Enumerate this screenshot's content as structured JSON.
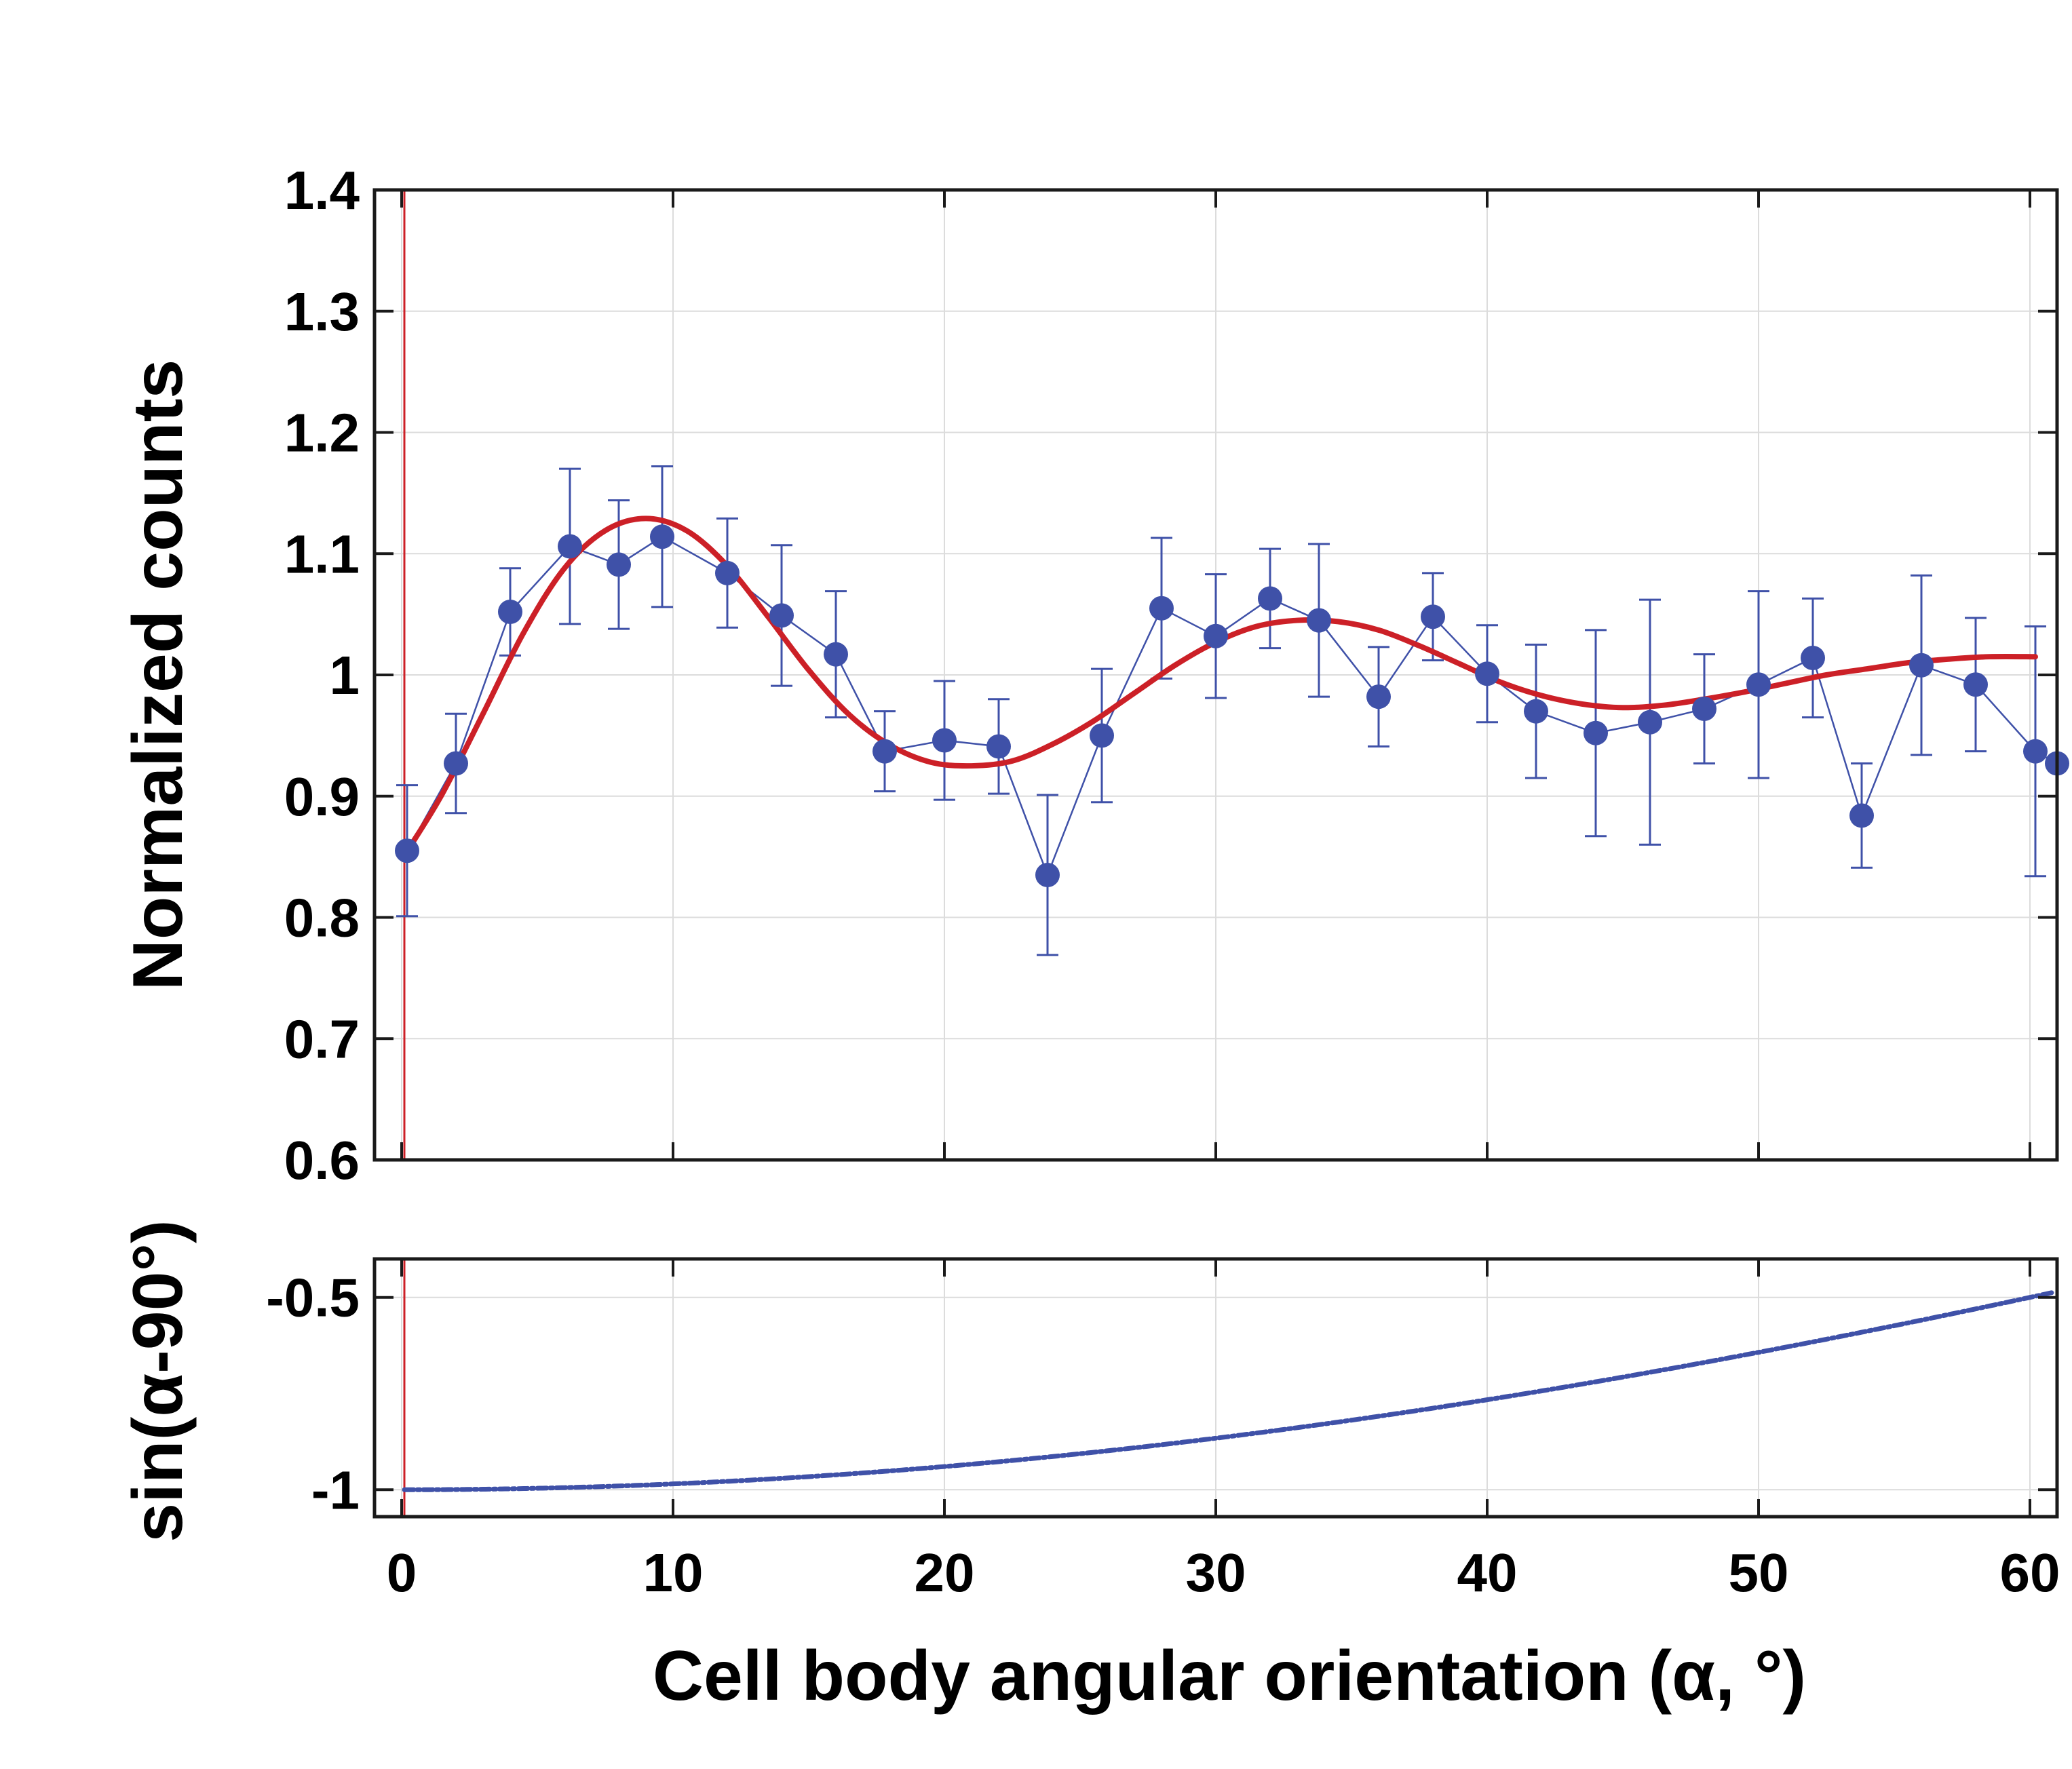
{
  "chart_data": [
    {
      "type": "scatter",
      "panel": "top",
      "ylabel": "Normalized counts",
      "xlim": [
        -1,
        61
      ],
      "ylim": [
        0.6,
        1.4
      ],
      "yticks": [
        "0.6",
        "0.7",
        "0.8",
        "0.9",
        "1",
        "1.1",
        "1.2",
        "1.3",
        "1.4"
      ],
      "xticks": [
        0,
        10,
        20,
        30,
        40,
        50,
        60
      ],
      "grid": true,
      "marker_reference_x": 0.1,
      "colors": {
        "data": "#3f51a8",
        "fit": "#cc2027",
        "reference": "#cc2027"
      },
      "series": [
        {
          "kind": "data-with-error-bars",
          "x": [
            0.2,
            2.0,
            4.0,
            6.2,
            8.0,
            9.6,
            12.0,
            14.0,
            16.0,
            17.8,
            20.0,
            22.0,
            23.8,
            25.8,
            28.0,
            30.0,
            32.0,
            33.8,
            36.0,
            38.0,
            40.0,
            41.8,
            44.0,
            46.0,
            48.0,
            50.0,
            52.0,
            53.8,
            56.0,
            58.0,
            60.2,
            61.0
          ],
          "y": [
            0.855,
            0.927,
            1.052,
            1.106,
            1.091,
            1.114,
            1.084,
            1.049,
            1.017,
            0.937,
            0.946,
            0.941,
            0.835,
            0.95,
            1.055,
            1.032,
            1.063,
            1.045,
            0.982,
            1.048,
            1.001,
            0.97,
            0.952,
            0.961,
            0.972,
            0.992,
            1.014,
            0.884,
            1.008,
            0.992,
            0.937,
            0.927
          ],
          "yerr": [
            0.054,
            0.041,
            0.036,
            0.064,
            0.053,
            0.058,
            0.045,
            0.058,
            0.052,
            0.033,
            0.049,
            0.039,
            0.066,
            0.055,
            0.058,
            0.051,
            0.041,
            0.063,
            0.041,
            0.036,
            0.04,
            0.055,
            0.085,
            0.101,
            0.045,
            0.077,
            0.049,
            0.043,
            0.074,
            0.055,
            0.103,
            0
          ]
        },
        {
          "kind": "fit",
          "x": [
            0.3,
            1.5,
            3,
            4.5,
            6,
            7.5,
            9,
            10.5,
            12,
            13.5,
            15,
            16.5,
            18,
            19.5,
            21,
            22.5,
            24,
            25.5,
            27,
            28.5,
            30,
            31.5,
            33,
            34.5,
            36,
            37.5,
            39,
            40.5,
            42,
            43.5,
            45,
            46.5,
            48,
            49.5,
            51,
            52.5,
            54,
            55.5,
            57,
            58.5,
            60.2
          ],
          "y": [
            0.858,
            0.902,
            0.968,
            1.035,
            1.088,
            1.119,
            1.129,
            1.119,
            1.09,
            1.048,
            1.004,
            0.967,
            0.942,
            0.928,
            0.925,
            0.929,
            0.943,
            0.962,
            0.985,
            1.008,
            1.027,
            1.04,
            1.045,
            1.044,
            1.037,
            1.024,
            1.009,
            0.994,
            0.983,
            0.976,
            0.973,
            0.975,
            0.98,
            0.986,
            0.993,
            1.0,
            1.005,
            1.01,
            1.013,
            1.015,
            1.015
          ]
        }
      ]
    },
    {
      "type": "scatter",
      "panel": "bottom",
      "ylabel": "sin(α-90°)",
      "xlabel": "Cell body angular orientation (α, °)",
      "xlim": [
        -1,
        61
      ],
      "ylim": [
        -1.07,
        -0.4
      ],
      "yticks": [
        "-0.5",
        "-1"
      ],
      "xticks": [
        0,
        10,
        20,
        30,
        40,
        50,
        60
      ],
      "xticklabels": [
        "0",
        "10",
        "20",
        "30",
        "40",
        "50",
        "60"
      ],
      "grid": true,
      "marker_reference_x": 0.1,
      "function": "y = sin(α - 90°)",
      "colors": {
        "data": "#3f51a8",
        "reference": "#cc2027"
      }
    }
  ]
}
